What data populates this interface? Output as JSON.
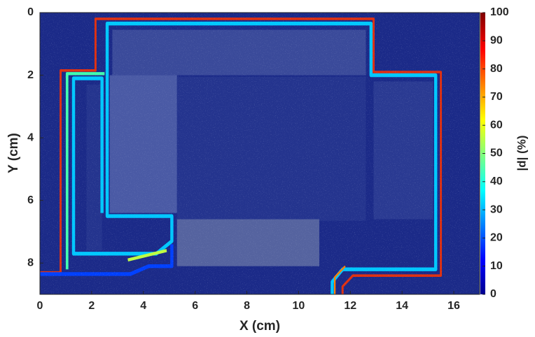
{
  "chart_data": {
    "type": "heatmap",
    "x_label": "X (cm)",
    "y_label": "Y (cm)",
    "colorbar_label": "|d| (%)",
    "xlim": [
      0,
      17
    ],
    "xticks": [
      0,
      2,
      4,
      6,
      8,
      10,
      12,
      14,
      16
    ],
    "ylim": [
      9,
      0
    ],
    "yticks": [
      0,
      2,
      4,
      6,
      8
    ],
    "clim": [
      0,
      100
    ],
    "cticks": [
      0,
      10,
      20,
      30,
      40,
      50,
      60,
      70,
      80,
      90,
      100
    ],
    "colormap": "jet"
  }
}
